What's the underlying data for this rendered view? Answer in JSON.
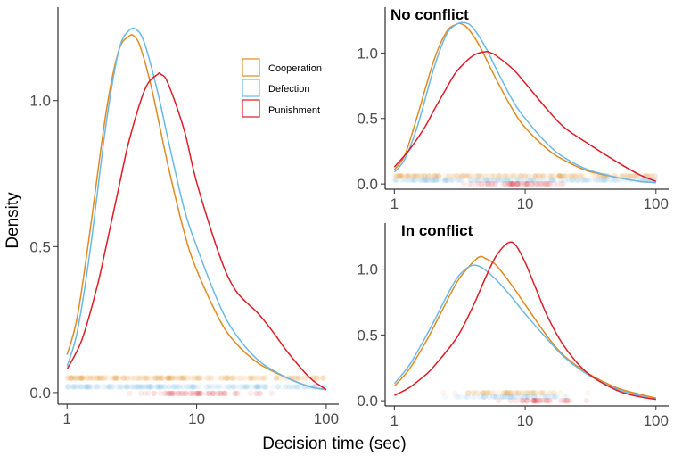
{
  "xlabel": "Decision time (sec)",
  "ylabel": "Density",
  "legend": {
    "position": "inside-top-right",
    "items": [
      {
        "label": "Cooperation",
        "color": "#E08A1E"
      },
      {
        "label": "Defection",
        "color": "#6BB8E8"
      },
      {
        "label": "Punishment",
        "color": "#DD1C25"
      }
    ]
  },
  "chart_data": [
    {
      "type": "line",
      "panel": "overall",
      "title": "",
      "x_scale": "log",
      "xlim": [
        0.85,
        125
      ],
      "ylim": [
        -0.04,
        1.32
      ],
      "x_ticks": [
        1,
        10,
        100
      ],
      "x_tick_labels": [
        "1",
        "10",
        "100"
      ],
      "y_ticks": [
        0,
        0.5,
        1.0
      ],
      "y_tick_labels": [
        "0.0",
        "0.5",
        "1.0"
      ],
      "grid": false,
      "series": [
        {
          "name": "Cooperation",
          "color": "#E08A1E",
          "x": [
            1,
            1.2,
            1.5,
            2,
            2.5,
            3,
            3.3,
            3.7,
            4.5,
            6,
            8,
            10,
            15,
            20,
            30,
            50,
            75,
            100
          ],
          "y": [
            0.13,
            0.26,
            0.55,
            0.96,
            1.17,
            1.22,
            1.22,
            1.18,
            1.04,
            0.78,
            0.55,
            0.42,
            0.25,
            0.17,
            0.1,
            0.05,
            0.02,
            0.01
          ]
        },
        {
          "name": "Defection",
          "color": "#6BB8E8",
          "x": [
            1,
            1.2,
            1.5,
            2,
            2.5,
            3,
            3.5,
            4,
            5,
            6,
            8,
            10,
            15,
            20,
            30,
            50,
            75,
            100
          ],
          "y": [
            0.09,
            0.21,
            0.48,
            0.92,
            1.17,
            1.24,
            1.24,
            1.19,
            1.03,
            0.87,
            0.63,
            0.5,
            0.3,
            0.2,
            0.11,
            0.05,
            0.02,
            0.01
          ]
        },
        {
          "name": "Punishment",
          "color": "#DD1C25",
          "x": [
            1,
            1.3,
            1.7,
            2,
            2.5,
            3,
            4,
            5,
            5.3,
            6,
            8,
            10,
            15,
            20,
            30,
            40,
            50,
            75,
            100
          ],
          "y": [
            0.08,
            0.18,
            0.36,
            0.5,
            0.7,
            0.86,
            1.04,
            1.09,
            1.09,
            1.06,
            0.9,
            0.72,
            0.47,
            0.35,
            0.27,
            0.2,
            0.14,
            0.05,
            0.01
          ]
        }
      ],
      "rug": [
        {
          "name": "Cooperation",
          "color": "#E08A1E",
          "y": 0.05,
          "range": [
            1,
            100
          ],
          "density": "heavy"
        },
        {
          "name": "Defection",
          "color": "#6BB8E8",
          "y": 0.02,
          "range": [
            1,
            100
          ],
          "density": "heavy"
        },
        {
          "name": "Punishment",
          "color": "#DD1C25",
          "y": -0.003,
          "range": [
            1,
            100
          ],
          "density": "light"
        }
      ]
    },
    {
      "type": "line",
      "panel": "no-conflict",
      "title": "No conflict",
      "x_scale": "log",
      "xlim": [
        0.85,
        125
      ],
      "ylim": [
        -0.04,
        1.35
      ],
      "x_ticks": [
        1,
        10,
        100
      ],
      "x_tick_labels": [
        "1",
        "10",
        "100"
      ],
      "y_ticks": [
        0,
        0.5,
        1.0
      ],
      "y_tick_labels": [
        "0.0",
        "0.5",
        "1.0"
      ],
      "grid": false,
      "series": [
        {
          "name": "Cooperation",
          "color": "#E08A1E",
          "x": [
            1,
            1.2,
            1.5,
            2,
            2.5,
            3,
            3.3,
            3.7,
            4.5,
            6,
            8,
            10,
            15,
            20,
            30,
            50,
            75,
            100
          ],
          "y": [
            0.11,
            0.22,
            0.52,
            0.94,
            1.16,
            1.22,
            1.22,
            1.18,
            1.05,
            0.8,
            0.57,
            0.43,
            0.26,
            0.18,
            0.1,
            0.05,
            0.02,
            0.01
          ]
        },
        {
          "name": "Defection",
          "color": "#6BB8E8",
          "x": [
            1,
            1.2,
            1.5,
            2,
            2.5,
            3,
            3.5,
            4,
            5,
            6,
            8,
            10,
            15,
            20,
            30,
            50,
            75,
            100
          ],
          "y": [
            0.09,
            0.19,
            0.44,
            0.88,
            1.14,
            1.22,
            1.23,
            1.19,
            1.04,
            0.88,
            0.64,
            0.5,
            0.3,
            0.2,
            0.11,
            0.05,
            0.02,
            0.01
          ]
        },
        {
          "name": "Punishment",
          "color": "#DD1C25",
          "x": [
            1,
            1.3,
            1.7,
            2,
            2.5,
            3,
            4,
            5,
            5.5,
            6,
            8,
            10,
            15,
            20,
            30,
            50,
            75,
            100
          ],
          "y": [
            0.13,
            0.26,
            0.43,
            0.56,
            0.73,
            0.86,
            0.98,
            1.01,
            1.0,
            0.98,
            0.88,
            0.77,
            0.56,
            0.43,
            0.31,
            0.17,
            0.07,
            0.02
          ]
        }
      ],
      "rug": [
        {
          "name": "Cooperation",
          "color": "#E08A1E",
          "y": 0.06,
          "range": [
            1,
            100
          ],
          "density": "heavy"
        },
        {
          "name": "Defection",
          "color": "#6BB8E8",
          "y": 0.03,
          "range": [
            1,
            100
          ],
          "density": "heavy"
        },
        {
          "name": "Punishment",
          "color": "#DD1C25",
          "y": 0.0,
          "range": [
            2,
            40
          ],
          "density": "light"
        }
      ]
    },
    {
      "type": "line",
      "panel": "in-conflict",
      "title": "In conflict",
      "x_scale": "log",
      "xlim": [
        0.85,
        125
      ],
      "ylim": [
        -0.04,
        1.35
      ],
      "x_ticks": [
        1,
        10,
        100
      ],
      "x_tick_labels": [
        "1",
        "10",
        "100"
      ],
      "y_ticks": [
        0,
        0.5,
        1.0
      ],
      "y_tick_labels": [
        "0.0",
        "0.5",
        "1.0"
      ],
      "grid": false,
      "series": [
        {
          "name": "Cooperation",
          "color": "#E08A1E",
          "x": [
            1,
            1.3,
            1.7,
            2,
            2.5,
            3,
            3.5,
            4.4,
            5,
            6,
            8,
            10,
            15,
            20,
            30,
            50,
            75,
            100
          ],
          "y": [
            0.11,
            0.24,
            0.43,
            0.56,
            0.75,
            0.9,
            0.99,
            1.09,
            1.08,
            1.03,
            0.87,
            0.73,
            0.48,
            0.34,
            0.21,
            0.1,
            0.05,
            0.02
          ]
        },
        {
          "name": "Defection",
          "color": "#6BB8E8",
          "x": [
            1,
            1.3,
            1.7,
            2,
            2.5,
            3,
            3.5,
            4,
            4.5,
            5,
            6,
            8,
            10,
            15,
            20,
            30,
            50,
            75,
            100
          ],
          "y": [
            0.13,
            0.27,
            0.47,
            0.6,
            0.79,
            0.93,
            1.0,
            1.03,
            1.02,
            0.99,
            0.92,
            0.78,
            0.66,
            0.46,
            0.33,
            0.2,
            0.09,
            0.04,
            0.01
          ]
        },
        {
          "name": "Punishment",
          "color": "#DD1C25",
          "x": [
            1,
            1.3,
            1.7,
            2,
            3,
            4,
            5,
            6,
            7.4,
            8.5,
            10,
            12,
            15,
            20,
            30,
            50,
            75,
            100
          ],
          "y": [
            0.04,
            0.1,
            0.19,
            0.26,
            0.48,
            0.72,
            0.94,
            1.1,
            1.2,
            1.18,
            1.05,
            0.86,
            0.63,
            0.41,
            0.21,
            0.08,
            0.03,
            0.01
          ]
        }
      ],
      "rug": [
        {
          "name": "Cooperation",
          "color": "#E08A1E",
          "y": 0.06,
          "range": [
            1.3,
            60
          ],
          "density": "light"
        },
        {
          "name": "Defection",
          "color": "#6BB8E8",
          "y": 0.03,
          "range": [
            1.3,
            40
          ],
          "density": "light"
        },
        {
          "name": "Punishment",
          "color": "#DD1C25",
          "y": 0.0,
          "range": [
            3,
            50
          ],
          "density": "sparse"
        }
      ]
    }
  ]
}
